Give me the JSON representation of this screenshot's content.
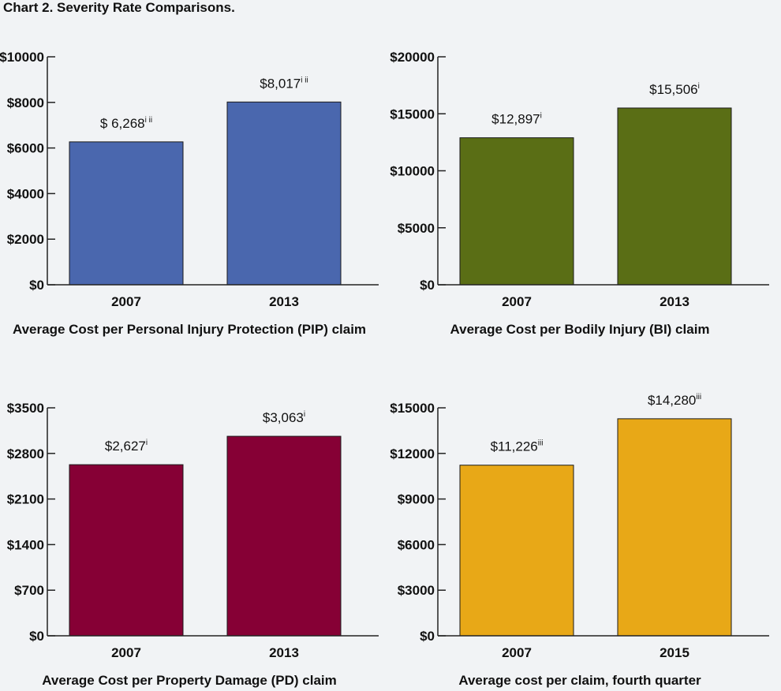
{
  "page": {
    "title": "Chart 2. Severity Rate Comparisons."
  },
  "chart_data": [
    {
      "type": "bar",
      "categories": [
        "2007",
        "2013"
      ],
      "values": [
        6268,
        8017
      ],
      "value_labels": [
        "$ 6,268",
        "$8,017"
      ],
      "value_superscripts": [
        "i ii",
        "i ii"
      ],
      "ylim": [
        0,
        10000
      ],
      "yticks": [
        0,
        2000,
        4000,
        6000,
        8000,
        10000
      ],
      "ytick_labels": [
        "$0",
        "$2000",
        "$4000",
        "$6000",
        "$8000",
        "$10000"
      ],
      "xlabel": "Average Cost per Personal Injury Protection (PIP) claim",
      "ylabel": "",
      "bar_color": "#4a67ae"
    },
    {
      "type": "bar",
      "categories": [
        "2007",
        "2013"
      ],
      "values": [
        12897,
        15506
      ],
      "value_labels": [
        "$12,897",
        "$15,506"
      ],
      "value_superscripts": [
        "i",
        "i"
      ],
      "ylim": [
        0,
        20000
      ],
      "yticks": [
        0,
        5000,
        10000,
        15000,
        20000
      ],
      "ytick_labels": [
        "$0",
        "$5000",
        "$10000",
        "$15000",
        "$20000"
      ],
      "xlabel": "Average Cost per Bodily Injury (BI) claim",
      "ylabel": "",
      "bar_color": "#5a6e15"
    },
    {
      "type": "bar",
      "categories": [
        "2007",
        "2013"
      ],
      "values": [
        2627,
        3063
      ],
      "value_labels": [
        "$2,627",
        "$3,063"
      ],
      "value_superscripts": [
        "i",
        "i"
      ],
      "ylim": [
        0,
        3500
      ],
      "yticks": [
        0,
        700,
        1400,
        2100,
        2800,
        3500
      ],
      "ytick_labels": [
        "$0",
        "$700",
        "$1400",
        "$2100",
        "$2800",
        "$3500"
      ],
      "xlabel": "Average Cost per Property Damage (PD) claim",
      "ylabel": "",
      "bar_color": "#860035"
    },
    {
      "type": "bar",
      "categories": [
        "2007",
        "2015"
      ],
      "values": [
        11226,
        14280
      ],
      "value_labels": [
        "$11,226",
        "$14,280"
      ],
      "value_superscripts": [
        "iii",
        "iii"
      ],
      "ylim": [
        0,
        15000
      ],
      "yticks": [
        0,
        3000,
        6000,
        9000,
        12000,
        15000
      ],
      "ytick_labels": [
        "$0",
        "$3000",
        "$6000",
        "$9000",
        "$12000",
        "$15000"
      ],
      "xlabel": "Average cost per claim, fourth quarter",
      "ylabel": "",
      "bar_color": "#e8a817"
    }
  ]
}
